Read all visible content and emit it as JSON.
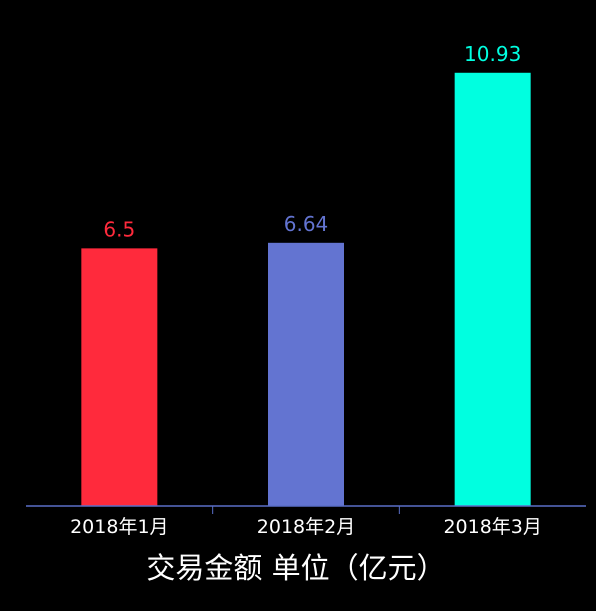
{
  "chart_data": {
    "type": "bar",
    "title": "交易金额 单位（亿元）",
    "categories": [
      "2018年1月",
      "2018年2月",
      "2018年3月"
    ],
    "values": [
      6.5,
      6.64,
      10.93
    ],
    "value_labels": [
      "6.5",
      "6.64",
      "10.93"
    ],
    "colors": [
      "#ff2a3c",
      "#6374d1",
      "#00ffe0"
    ],
    "ylim": [
      0,
      11
    ],
    "xlabel": "",
    "ylabel": "",
    "grid": false,
    "legend": "none",
    "background": "#000000",
    "axis_color": "#5a6fc8"
  }
}
